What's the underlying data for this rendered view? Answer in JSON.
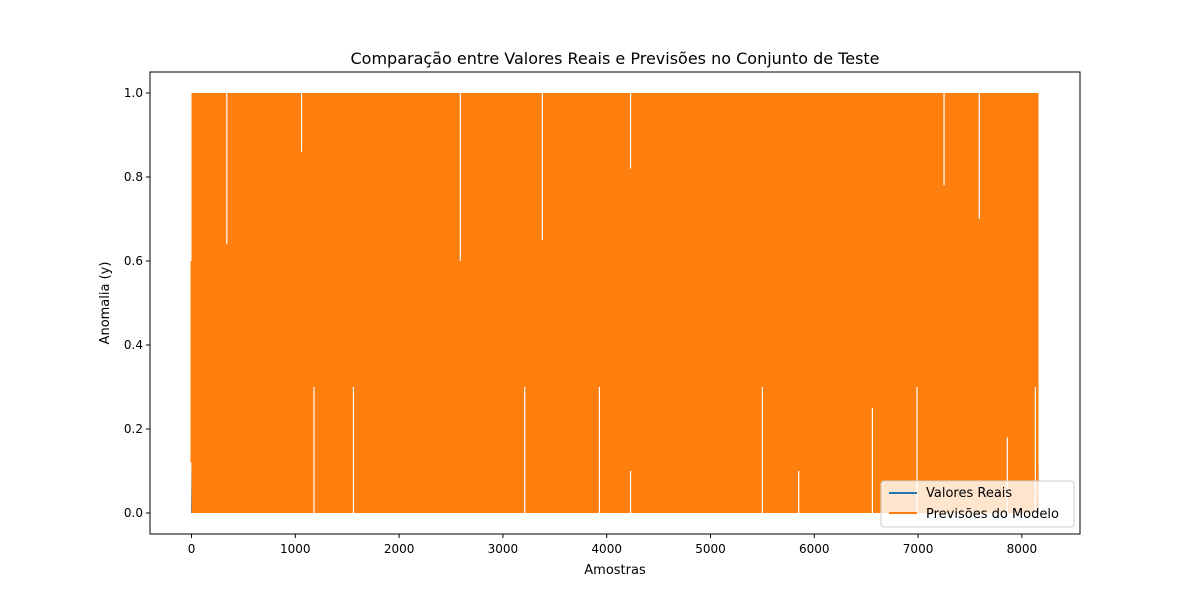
{
  "chart_data": {
    "type": "line",
    "title": "Comparação entre Valores Reais e Previsões no Conjunto de Teste",
    "xlabel": "Amostras",
    "ylabel": "Anomalia (y)",
    "xlim": [
      -400,
      8560
    ],
    "ylim": [
      -0.05,
      1.05
    ],
    "x_ticks": [
      0,
      1000,
      2000,
      3000,
      4000,
      5000,
      6000,
      7000,
      8000
    ],
    "y_ticks": [
      0.0,
      0.2,
      0.4,
      0.6,
      0.8,
      1.0
    ],
    "x_tick_labels": [
      "0",
      "1000",
      "2000",
      "3000",
      "4000",
      "5000",
      "6000",
      "7000",
      "8000"
    ],
    "y_tick_labels": [
      "0.0",
      "0.2",
      "0.4",
      "0.6",
      "0.8",
      "1.0"
    ],
    "grid": false,
    "legend_position": "lower-right",
    "series": [
      {
        "name": "Valores Reais",
        "color": "#1f77b4",
        "x_range": [
          0,
          8160
        ],
        "min": 0.0,
        "max": 1.0,
        "note": "Densely oscillating series, fully occluded by the predictions series"
      },
      {
        "name": "Previsões do Modelo",
        "color": "#ff7f0e",
        "x_range": [
          0,
          8160
        ],
        "min": 0.0,
        "max": 1.0,
        "band_lower": 0.0,
        "band_upper": 1.0,
        "upward_spikes_to": [
          {
            "x": 1180,
            "y": 0.3
          },
          {
            "x": 1560,
            "y": 0.3
          },
          {
            "x": 3210,
            "y": 0.3
          },
          {
            "x": 3930,
            "y": 0.3
          },
          {
            "x": 4230,
            "y": 0.1
          },
          {
            "x": 5500,
            "y": 0.3
          },
          {
            "x": 5850,
            "y": 0.1
          },
          {
            "x": 6560,
            "y": 0.25
          },
          {
            "x": 6990,
            "y": 0.3
          },
          {
            "x": 7860,
            "y": 0.18
          },
          {
            "x": 8130,
            "y": 0.3
          }
        ],
        "downward_spikes_to": [
          {
            "x": 340,
            "y": 0.64
          },
          {
            "x": 1060,
            "y": 0.86
          },
          {
            "x": 2590,
            "y": 0.6
          },
          {
            "x": 3380,
            "y": 0.65
          },
          {
            "x": 4230,
            "y": 0.82
          },
          {
            "x": 7250,
            "y": 0.78
          },
          {
            "x": 7590,
            "y": 0.7
          }
        ]
      }
    ]
  }
}
